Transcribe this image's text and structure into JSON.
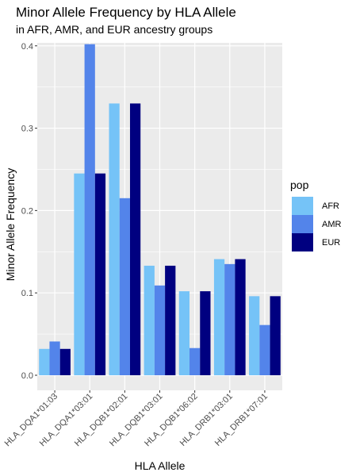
{
  "chart_data": {
    "type": "bar",
    "title": "Minor Allele Frequency by HLA Allele",
    "subtitle": "in AFR, AMR, and EUR ancestry groups",
    "xlabel": "HLA Allele",
    "ylabel": "Minor Allele Frequency",
    "ylim": [
      0,
      0.42
    ],
    "yticks": [
      0.0,
      0.1,
      0.2,
      0.3,
      0.4
    ],
    "ytick_labels": [
      "0.0",
      "0.1",
      "0.2",
      "0.3",
      "0.4"
    ],
    "categories": [
      "HLA_DQA1*01:03",
      "HLA_DQA1*03:01",
      "HLA_DQB1*02:01",
      "HLA_DQB1*03:01",
      "HLA_DQB1*06:02",
      "HLA_DRB1*03:01",
      "HLA_DRB1*07:01"
    ],
    "series": [
      {
        "name": "AFR",
        "color": "#75c3f7",
        "values": [
          0.032,
          0.245,
          0.33,
          0.133,
          0.102,
          0.141,
          0.096
        ]
      },
      {
        "name": "AMR",
        "color": "#5384ea",
        "values": [
          0.041,
          0.402,
          0.215,
          0.109,
          0.033,
          0.135,
          0.061
        ]
      },
      {
        "name": "EUR",
        "color": "#000080",
        "values": [
          0.032,
          0.245,
          0.33,
          0.133,
          0.102,
          0.141,
          0.096
        ]
      }
    ],
    "legend": {
      "title": "pop",
      "position": "right"
    },
    "grid": true,
    "panel_background": "#ebebeb"
  }
}
